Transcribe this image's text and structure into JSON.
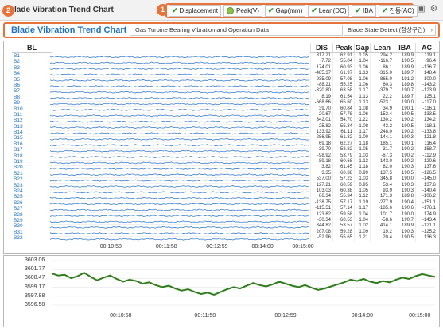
{
  "app": {
    "title": "lade Vibration Trend Chart"
  },
  "callouts": {
    "one": "1",
    "two": "2"
  },
  "toggles": [
    {
      "label": "Displacement",
      "style": "check"
    },
    {
      "label": "Peak(V)",
      "style": "round"
    },
    {
      "label": "Gap(mm)",
      "style": "check"
    },
    {
      "label": "Lean(DC)",
      "style": "check"
    },
    {
      "label": "IBA",
      "style": "check"
    },
    {
      "label": "진동(AC)",
      "style": "check"
    }
  ],
  "header": {
    "title": "Blade Vibration Trend Chart",
    "subtitle": "Gas Turbine Bearing Vibration and Operation Data",
    "state": "Blade State Detect (정상구간)"
  },
  "table": {
    "bl_header": "BL",
    "columns": [
      "DIS",
      "Peak",
      "Gap",
      "Lean",
      "IBA",
      "AC"
    ],
    "rows": [
      {
        "bl": "B1",
        "v": [
          "317.21",
          "62.91",
          "1.05",
          "294.2",
          "189.9",
          "119.1"
        ]
      },
      {
        "bl": "B2",
        "v": [
          "-7.72",
          "55.04",
          "1.04",
          "-116.7",
          "190.5",
          "-96.4"
        ]
      },
      {
        "bl": "B3",
        "v": [
          "174.01",
          "60.93",
          "1.06",
          "86.1",
          "189.9",
          "-136.7"
        ]
      },
      {
        "bl": "B4",
        "v": [
          "-485.37",
          "61.97",
          "1.13",
          "-315.0",
          "189.7",
          "148.4"
        ]
      },
      {
        "bl": "B5",
        "v": [
          "-935.09",
          "57.08",
          "1.06",
          "-865.0",
          "191.2",
          "100.0"
        ]
      },
      {
        "bl": "B6",
        "v": [
          "-88.21",
          "55.25",
          "1.06",
          "60.3",
          "189.8",
          "-143.2"
        ]
      },
      {
        "bl": "B7",
        "v": [
          "-320.80",
          "63.58",
          "1.17",
          "-379.7",
          "190.7",
          "-123.9"
        ]
      },
      {
        "bl": "B8",
        "v": [
          "8.19",
          "61.54",
          "1.13",
          "22.2",
          "189.7",
          "125.1"
        ]
      },
      {
        "bl": "B9",
        "v": [
          "-668.66",
          "65.60",
          "1.13",
          "-523.1",
          "190.0",
          "-117.0"
        ]
      },
      {
        "bl": "B10",
        "v": [
          "39.70",
          "60.84",
          "1.08",
          "34.9",
          "190.1",
          "-116.1"
        ]
      },
      {
        "bl": "B11",
        "v": [
          "-20.67",
          "57.78",
          "1.06",
          "-153.4",
          "190.5",
          "-133.5"
        ]
      },
      {
        "bl": "B12",
        "v": [
          "342.01",
          "54.70",
          "1.22",
          "130.2",
          "190.2",
          "134.2"
        ]
      },
      {
        "bl": "B13",
        "v": [
          "25.82",
          "55.34",
          "1.08",
          "43.2",
          "190.5",
          "-118.1"
        ]
      },
      {
        "bl": "B14",
        "v": [
          "133.92",
          "61.11",
          "1.17",
          "248.0",
          "190.2",
          "-133.8"
        ]
      },
      {
        "bl": "B15",
        "v": [
          "286.95",
          "61.32",
          "1.00",
          "144.1",
          "190.3",
          "-121.8"
        ]
      },
      {
        "bl": "B16",
        "v": [
          "69.18",
          "62.27",
          "1.18",
          "185.1",
          "190.1",
          "116.4"
        ]
      },
      {
        "bl": "B17",
        "v": [
          "-39.70",
          "58.82",
          "1.05",
          "31.7",
          "190.2",
          "-158.7"
        ]
      },
      {
        "bl": "B18",
        "v": [
          "-98.92",
          "53.79",
          "1.03",
          "-67.3",
          "190.2",
          "-112.9"
        ]
      },
      {
        "bl": "B19",
        "v": [
          "89.18",
          "60.68",
          "1.13",
          "143.0",
          "190.2",
          "-120.6"
        ]
      },
      {
        "bl": "B20",
        "v": [
          "3.82",
          "61.45",
          "1.18",
          "82.0",
          "190.3",
          "137.6"
        ]
      },
      {
        "bl": "B21",
        "v": [
          "3.35",
          "60.38",
          "0.99",
          "137.5",
          "190.5",
          "-126.5"
        ]
      },
      {
        "bl": "B22",
        "v": [
          "537.00",
          "57.23",
          "1.03",
          "345.8",
          "190.0",
          "-145.0"
        ]
      },
      {
        "bl": "B23",
        "v": [
          "127.21",
          "60.59",
          "0.95",
          "53.4",
          "190.3",
          "137.6"
        ]
      },
      {
        "bl": "B24",
        "v": [
          "103.03",
          "60.38",
          "1.05",
          "93.9",
          "190.3",
          "-140.4"
        ]
      },
      {
        "bl": "B25",
        "v": [
          "86.34",
          "55.34",
          "1.12",
          "171.3",
          "189.8",
          "-106.2"
        ]
      },
      {
        "bl": "B26",
        "v": [
          "-138.75",
          "57.17",
          "1.19",
          "-277.9",
          "190.4",
          "-151.1"
        ]
      },
      {
        "bl": "B27",
        "v": [
          "-115.51",
          "57.14",
          "1.17",
          "-185.6",
          "190.6",
          "-176.1"
        ]
      },
      {
        "bl": "B28",
        "v": [
          "123.62",
          "59.58",
          "1.04",
          "101.7",
          "190.0",
          "174.9"
        ]
      },
      {
        "bl": "B29",
        "v": [
          "-30.34",
          "60.53",
          "1.04",
          "-58.6",
          "190.7",
          "-143.4"
        ]
      },
      {
        "bl": "B30",
        "v": [
          "344.82",
          "53.57",
          "1.02",
          "414.1",
          "189.9",
          "-121.1"
        ]
      },
      {
        "bl": "B31",
        "v": [
          "207.08",
          "59.28",
          "1.09",
          "19.2",
          "190.3",
          "-125.2"
        ]
      },
      {
        "bl": "B32",
        "v": [
          "-52.96",
          "55.65",
          "1.21",
          "20.4",
          "190.5",
          "136.3"
        ]
      }
    ]
  },
  "trend": {
    "line_color": "#3b7fd0",
    "x_ticks": [
      "00:10:58",
      "00:11:58",
      "00:12:59",
      "00:14:00",
      "00:15:00"
    ]
  },
  "chart_data": {
    "type": "line",
    "title": "",
    "xlabel": "",
    "ylabel": "",
    "color": "#2e7d1a",
    "x_ticks": [
      "00:10:58",
      "00:11:58",
      "00:12:59",
      "00:14:00",
      "00:15:00"
    ],
    "y_ticks": [
      "3603.06",
      "3601.77",
      "3600.47",
      "3599.17",
      "3597.88",
      "3596.58"
    ],
    "ylim": [
      3596.58,
      3603.06
    ],
    "series": [
      {
        "values": [
          3601.2,
          3600.9,
          3601.0,
          3600.5,
          3600.8,
          3601.3,
          3600.7,
          3600.2,
          3600.6,
          3600.9,
          3600.4,
          3600.0,
          3600.3,
          3600.1,
          3599.7,
          3599.9,
          3599.5,
          3599.2,
          3599.4,
          3599.0,
          3598.7,
          3598.9,
          3598.5,
          3598.2,
          3598.4,
          3598.1,
          3598.5,
          3598.9,
          3599.2,
          3599.0,
          3599.4,
          3599.8,
          3599.5,
          3599.3,
          3599.6,
          3600.0,
          3599.7,
          3599.4,
          3599.2,
          3599.5,
          3599.1,
          3598.8,
          3599.0,
          3599.3,
          3599.6,
          3599.9,
          3600.3,
          3600.1,
          3600.4,
          3600.0,
          3599.8,
          3600.1,
          3599.9,
          3600.3,
          3600.6,
          3600.4,
          3600.8,
          3601.1,
          3600.9,
          3600.7
        ]
      }
    ]
  }
}
